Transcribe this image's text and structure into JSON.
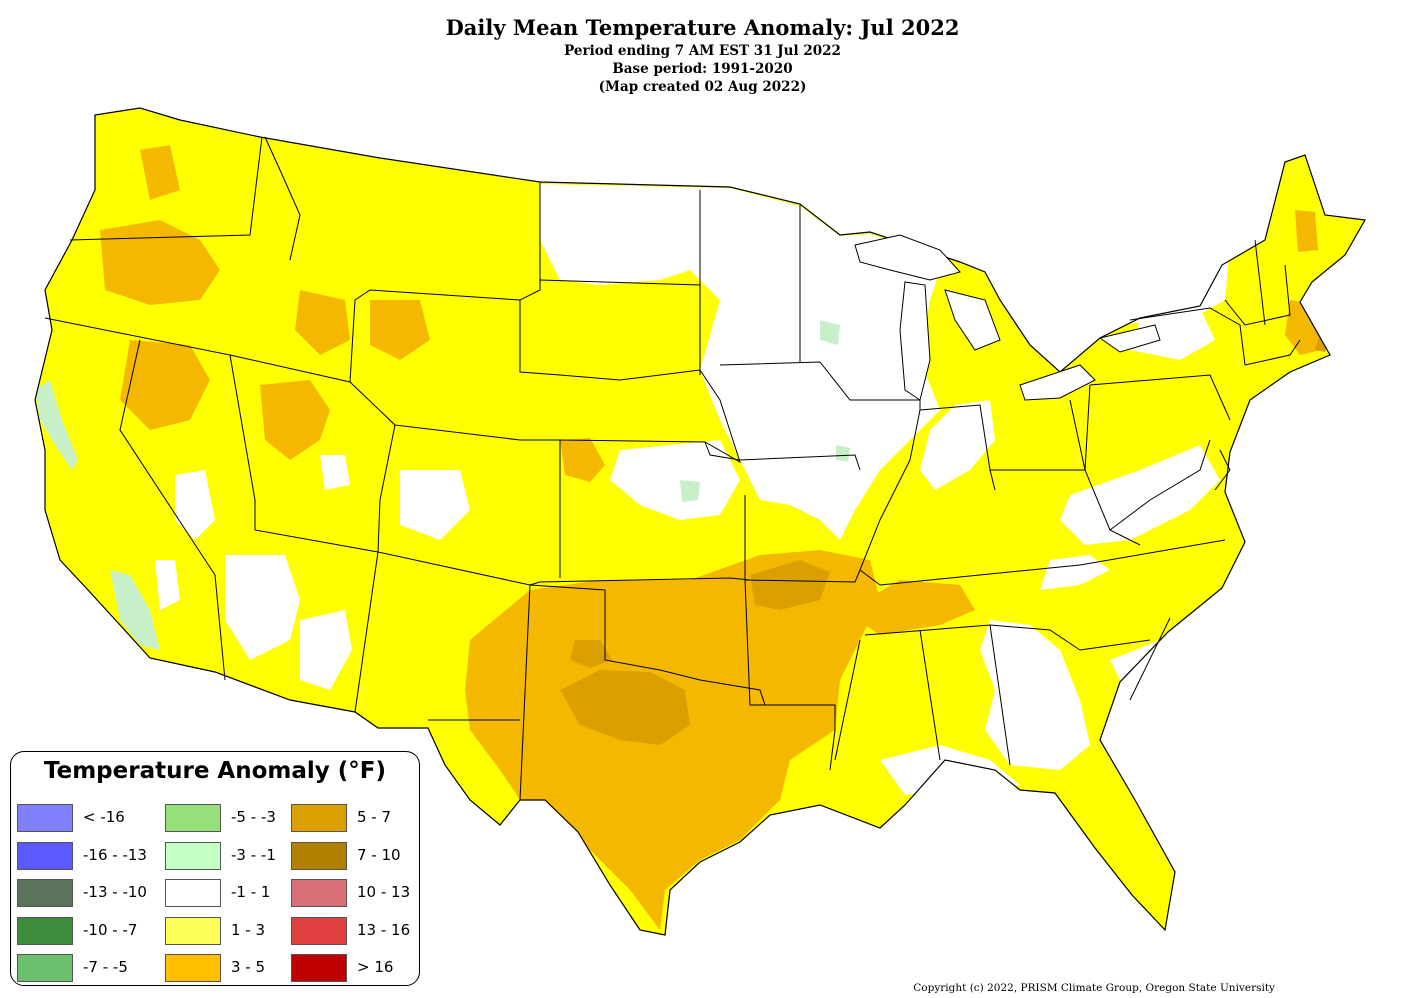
{
  "header": {
    "title": "Daily Mean Temperature Anomaly: Jul 2022",
    "period": "Period ending 7 AM EST 31 Jul 2022",
    "base_period": "Base period: 1991-2020",
    "created": "(Map created 02 Aug 2022)"
  },
  "legend": {
    "title": "Temperature Anomaly (°F)",
    "items": [
      {
        "label": "< -16",
        "color": "#8080ff"
      },
      {
        "label": "-16 - -13",
        "color": "#5a5aff"
      },
      {
        "label": "-13 - -10",
        "color": "#5a735a"
      },
      {
        "label": "-10 - -7",
        "color": "#3c8c3c"
      },
      {
        "label": "-7 - -5",
        "color": "#6cbf6c"
      },
      {
        "label": "-5 - -3",
        "color": "#96e07a"
      },
      {
        "label": "-3 - -1",
        "color": "#c4ffc4"
      },
      {
        "label": "-1 - 1",
        "color": "#ffffff"
      },
      {
        "label": "1 - 3",
        "color": "#ffff5a"
      },
      {
        "label": "3 - 5",
        "color": "#ffbe00"
      },
      {
        "label": "5 - 7",
        "color": "#d9a000"
      },
      {
        "label": "7 - 10",
        "color": "#b48000"
      },
      {
        "label": "10 - 13",
        "color": "#d97078"
      },
      {
        "label": "13 - 16",
        "color": "#e04040"
      },
      {
        "label": "> 16",
        "color": "#c00000"
      }
    ]
  },
  "map_colors": {
    "anom_1_3": "#ffff00",
    "anom_3_5": "#f5b800",
    "anom_5_7": "#d9a000",
    "anom_neutral": "#ffffff",
    "anom_cool": "#c8f0c8"
  },
  "footer": {
    "copyright": "Copyright (c) 2022, PRISM Climate Group, Oregon State University"
  }
}
